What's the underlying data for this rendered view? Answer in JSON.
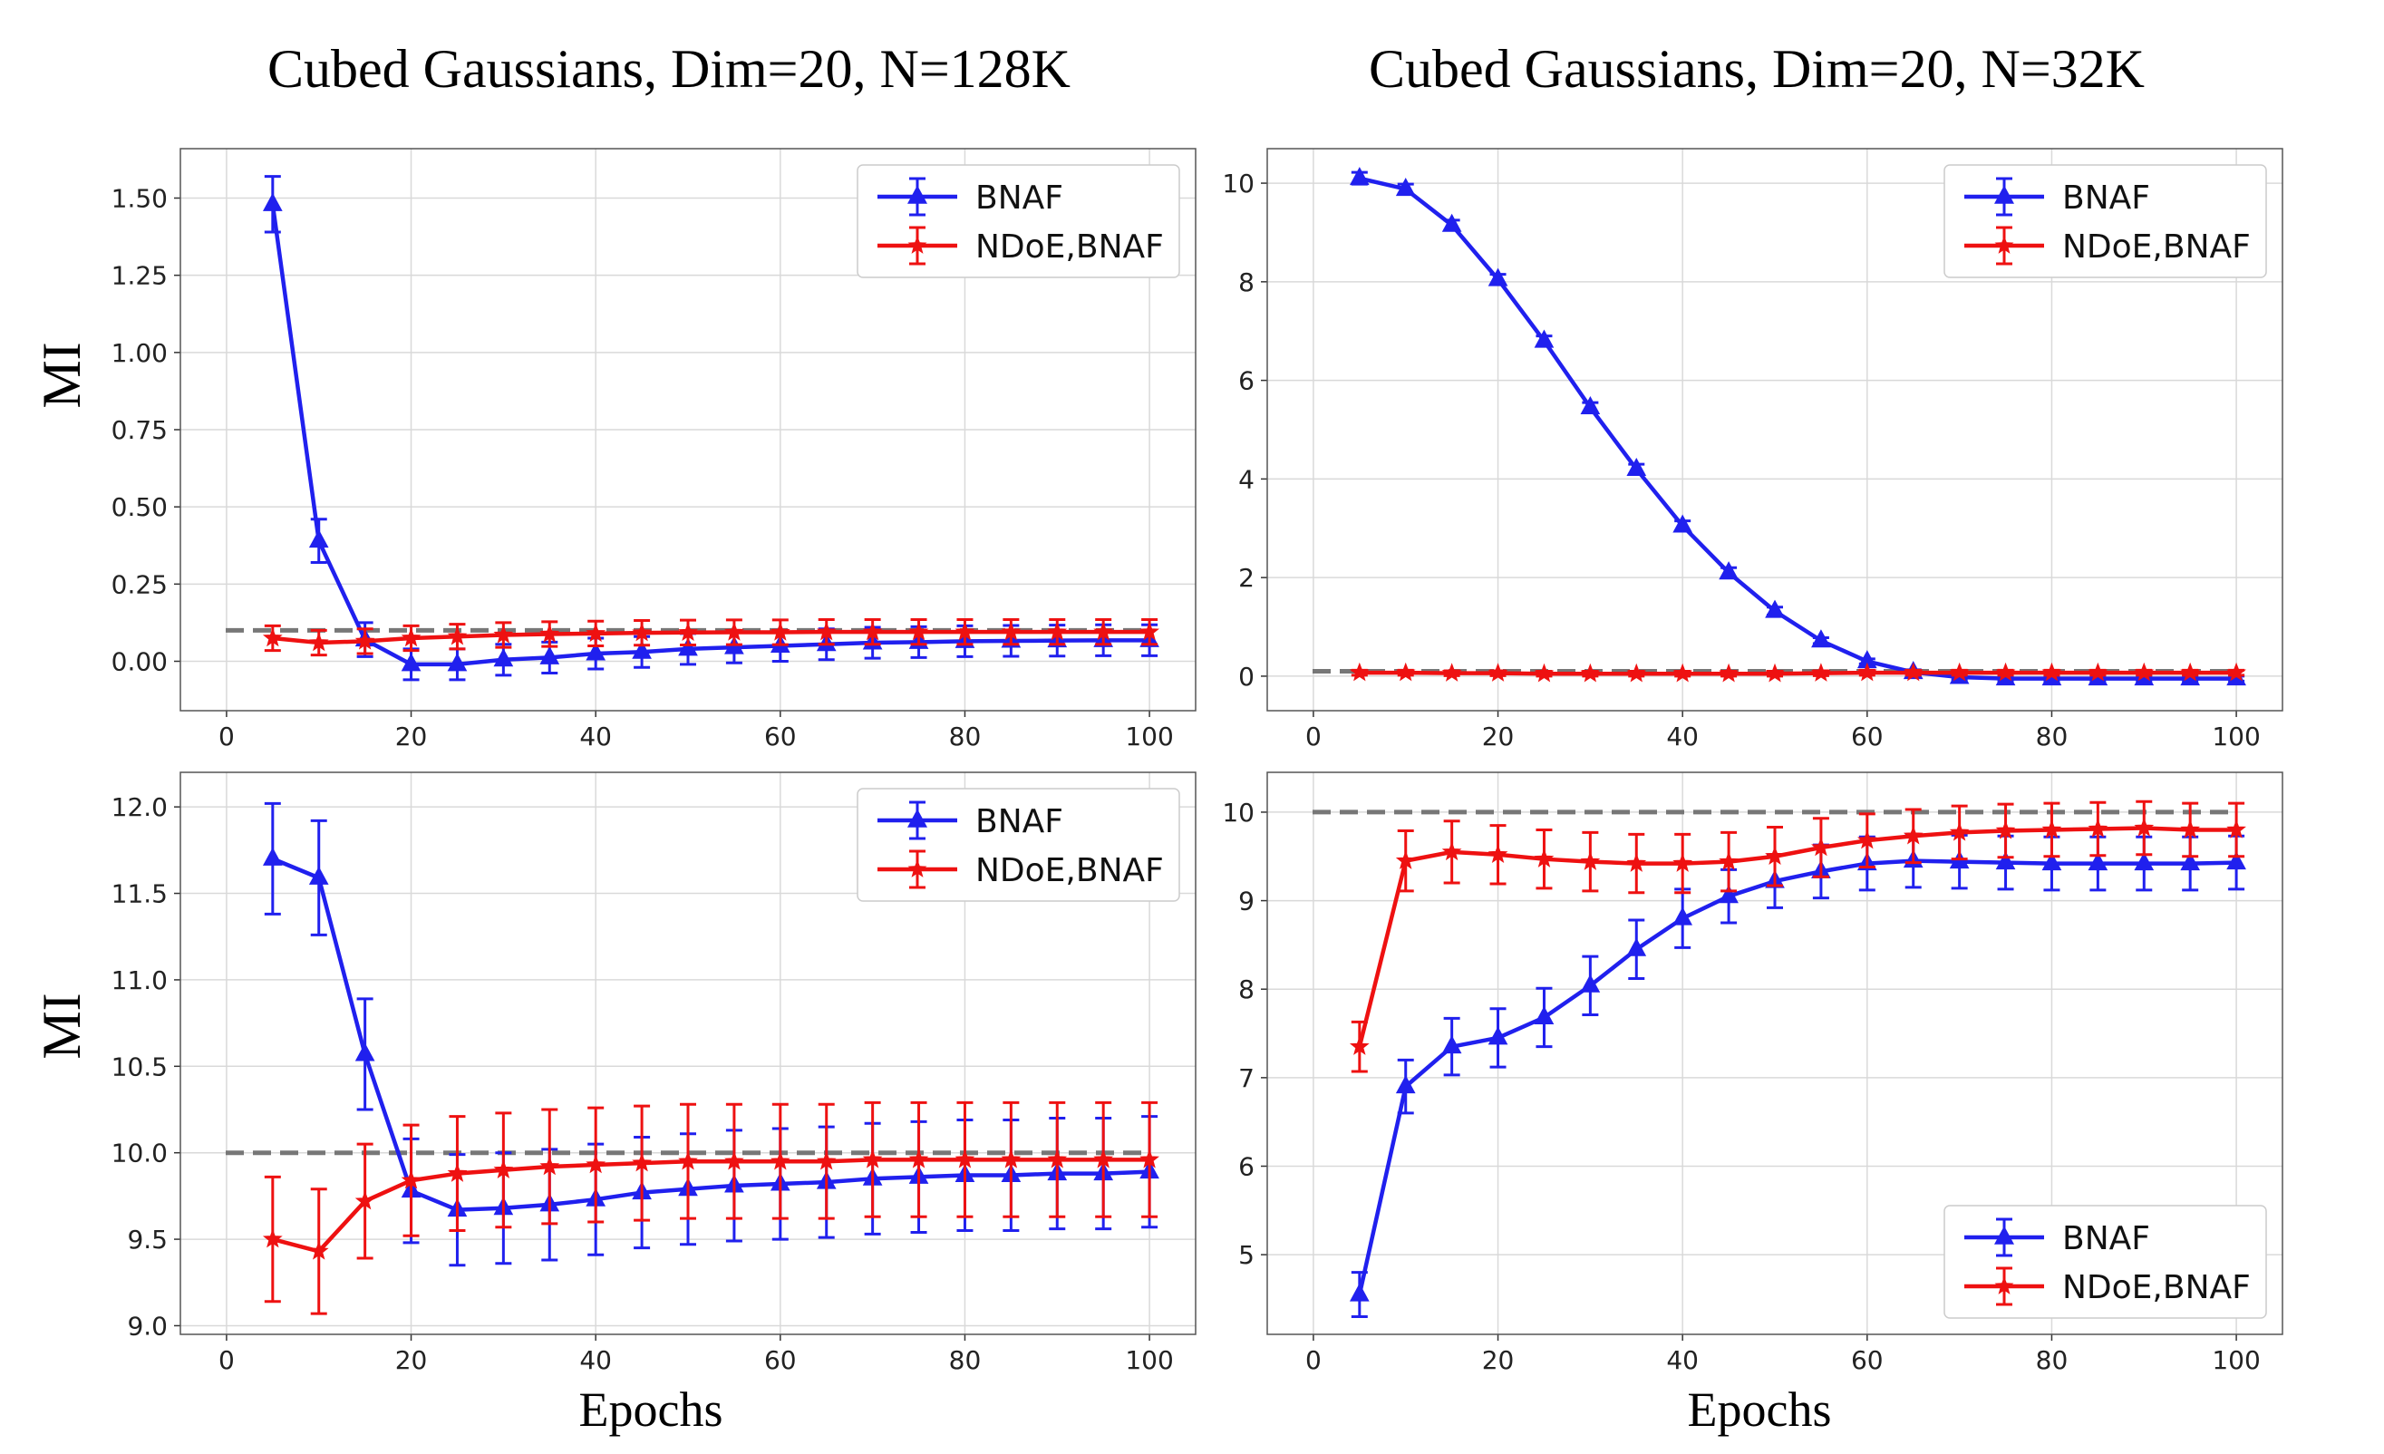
{
  "figure": {
    "col_titles": [
      "Cubed Gaussians, Dim=20, N=128K",
      "Cubed Gaussians, Dim=20, N=32K"
    ],
    "row_ylabels": [
      "MI",
      "MI"
    ],
    "col_xlabels": [
      "Epochs",
      "Epochs"
    ],
    "colors": {
      "BNAF": "#2020ee",
      "NDoE,BNAF": "#ee1111",
      "true_mi": "#777777",
      "grid": "#d9d9d9"
    }
  },
  "chart_data": [
    {
      "type": "line",
      "title": "Cubed Gaussians, Dim=20, N=128K",
      "xlabel": "",
      "ylabel": "MI",
      "xlim": [
        -5,
        105
      ],
      "ylim": [
        -0.16,
        1.66
      ],
      "xticks": [
        0,
        20,
        40,
        60,
        80,
        100
      ],
      "yticks": [
        0.0,
        0.25,
        0.5,
        0.75,
        1.0,
        1.25,
        1.5
      ],
      "ytick_labels": [
        "0.00",
        "0.25",
        "0.50",
        "0.75",
        "1.00",
        "1.25",
        "1.50"
      ],
      "grid": true,
      "legend_position": "top-right",
      "reference_line": 0.1,
      "x": [
        5,
        10,
        15,
        20,
        25,
        30,
        35,
        40,
        45,
        50,
        55,
        60,
        65,
        70,
        75,
        80,
        85,
        90,
        95,
        100
      ],
      "series": [
        {
          "name": "BNAF",
          "marker": "triangle",
          "values": [
            1.48,
            0.39,
            0.07,
            -0.01,
            -0.01,
            0.005,
            0.012,
            0.025,
            0.03,
            0.04,
            0.045,
            0.05,
            0.055,
            0.06,
            0.062,
            0.065,
            0.066,
            0.067,
            0.068,
            0.068
          ],
          "errors": [
            0.09,
            0.07,
            0.055,
            0.05,
            0.05,
            0.05,
            0.05,
            0.05,
            0.05,
            0.05,
            0.05,
            0.05,
            0.05,
            0.05,
            0.05,
            0.05,
            0.05,
            0.05,
            0.05,
            0.05
          ]
        },
        {
          "name": "NDoE,BNAF",
          "marker": "star",
          "values": [
            0.075,
            0.06,
            0.065,
            0.075,
            0.08,
            0.085,
            0.088,
            0.09,
            0.092,
            0.093,
            0.094,
            0.094,
            0.095,
            0.095,
            0.095,
            0.095,
            0.095,
            0.095,
            0.095,
            0.095
          ],
          "errors": [
            0.04,
            0.04,
            0.04,
            0.04,
            0.04,
            0.04,
            0.04,
            0.04,
            0.04,
            0.04,
            0.04,
            0.04,
            0.04,
            0.04,
            0.04,
            0.04,
            0.04,
            0.04,
            0.04,
            0.04
          ]
        }
      ]
    },
    {
      "type": "line",
      "title": "Cubed Gaussians, Dim=20, N=32K",
      "xlabel": "",
      "ylabel": "",
      "xlim": [
        -5,
        105
      ],
      "ylim": [
        -0.7,
        10.7
      ],
      "xticks": [
        0,
        20,
        40,
        60,
        80,
        100
      ],
      "yticks": [
        0,
        2,
        4,
        6,
        8,
        10
      ],
      "ytick_labels": [
        "0",
        "2",
        "4",
        "6",
        "8",
        "10"
      ],
      "grid": true,
      "legend_position": "top-right",
      "reference_line": 0.1,
      "x": [
        5,
        10,
        15,
        20,
        25,
        30,
        35,
        40,
        45,
        50,
        55,
        60,
        65,
        70,
        75,
        80,
        85,
        90,
        95,
        100
      ],
      "series": [
        {
          "name": "BNAF",
          "marker": "triangle",
          "values": [
            10.1,
            9.88,
            9.15,
            8.05,
            6.8,
            5.45,
            4.2,
            3.05,
            2.1,
            1.32,
            0.72,
            0.3,
            0.08,
            -0.02,
            -0.05,
            -0.05,
            -0.05,
            -0.05,
            -0.05,
            -0.05
          ],
          "errors": [
            0.12,
            0.1,
            0.1,
            0.1,
            0.1,
            0.1,
            0.1,
            0.1,
            0.1,
            0.08,
            0.06,
            0.05,
            0.05,
            0.05,
            0.05,
            0.05,
            0.05,
            0.05,
            0.05,
            0.05
          ]
        },
        {
          "name": "NDoE,BNAF",
          "marker": "star",
          "values": [
            0.07,
            0.07,
            0.06,
            0.06,
            0.05,
            0.05,
            0.05,
            0.05,
            0.05,
            0.05,
            0.06,
            0.07,
            0.07,
            0.07,
            0.07,
            0.07,
            0.07,
            0.07,
            0.07,
            0.07
          ],
          "errors": [
            0.05,
            0.05,
            0.05,
            0.05,
            0.05,
            0.05,
            0.05,
            0.05,
            0.05,
            0.05,
            0.05,
            0.05,
            0.05,
            0.05,
            0.05,
            0.05,
            0.05,
            0.05,
            0.05,
            0.05
          ]
        }
      ]
    },
    {
      "type": "line",
      "title": "",
      "xlabel": "Epochs",
      "ylabel": "MI",
      "xlim": [
        -5,
        105
      ],
      "ylim": [
        8.95,
        12.2
      ],
      "xticks": [
        0,
        20,
        40,
        60,
        80,
        100
      ],
      "yticks": [
        9.0,
        9.5,
        10.0,
        10.5,
        11.0,
        11.5,
        12.0
      ],
      "ytick_labels": [
        "9.0",
        "9.5",
        "10.0",
        "10.5",
        "11.0",
        "11.5",
        "12.0"
      ],
      "grid": true,
      "legend_position": "top-right",
      "reference_line": 10.0,
      "x": [
        5,
        10,
        15,
        20,
        25,
        30,
        35,
        40,
        45,
        50,
        55,
        60,
        65,
        70,
        75,
        80,
        85,
        90,
        95,
        100
      ],
      "series": [
        {
          "name": "BNAF",
          "marker": "triangle",
          "values": [
            11.7,
            11.59,
            10.57,
            9.78,
            9.67,
            9.68,
            9.7,
            9.73,
            9.77,
            9.79,
            9.81,
            9.82,
            9.83,
            9.85,
            9.86,
            9.87,
            9.87,
            9.88,
            9.88,
            9.89
          ],
          "errors": [
            0.32,
            0.33,
            0.32,
            0.3,
            0.32,
            0.32,
            0.32,
            0.32,
            0.32,
            0.32,
            0.32,
            0.32,
            0.32,
            0.32,
            0.32,
            0.32,
            0.32,
            0.32,
            0.32,
            0.32
          ]
        },
        {
          "name": "NDoE,BNAF",
          "marker": "star",
          "values": [
            9.5,
            9.43,
            9.72,
            9.84,
            9.88,
            9.9,
            9.92,
            9.93,
            9.94,
            9.95,
            9.95,
            9.95,
            9.95,
            9.96,
            9.96,
            9.96,
            9.96,
            9.96,
            9.96,
            9.96
          ],
          "errors": [
            0.36,
            0.36,
            0.33,
            0.32,
            0.33,
            0.33,
            0.33,
            0.33,
            0.33,
            0.33,
            0.33,
            0.33,
            0.33,
            0.33,
            0.33,
            0.33,
            0.33,
            0.33,
            0.33,
            0.33
          ]
        }
      ]
    },
    {
      "type": "line",
      "title": "",
      "xlabel": "Epochs",
      "ylabel": "",
      "xlim": [
        -5,
        105
      ],
      "ylim": [
        4.1,
        10.45
      ],
      "xticks": [
        0,
        20,
        40,
        60,
        80,
        100
      ],
      "yticks": [
        5,
        6,
        7,
        8,
        9,
        10
      ],
      "ytick_labels": [
        "5",
        "6",
        "7",
        "8",
        "9",
        "10"
      ],
      "grid": true,
      "legend_position": "bottom-right",
      "reference_line": 10.0,
      "x": [
        5,
        10,
        15,
        20,
        25,
        30,
        35,
        40,
        45,
        50,
        55,
        60,
        65,
        70,
        75,
        80,
        85,
        90,
        95,
        100
      ],
      "series": [
        {
          "name": "BNAF",
          "marker": "triangle",
          "values": [
            4.55,
            6.9,
            7.35,
            7.45,
            7.68,
            8.04,
            8.45,
            8.8,
            9.05,
            9.22,
            9.33,
            9.42,
            9.45,
            9.44,
            9.43,
            9.42,
            9.42,
            9.42,
            9.42,
            9.43
          ],
          "errors": [
            0.25,
            0.3,
            0.32,
            0.33,
            0.33,
            0.33,
            0.33,
            0.33,
            0.3,
            0.3,
            0.3,
            0.3,
            0.3,
            0.3,
            0.3,
            0.3,
            0.3,
            0.3,
            0.3,
            0.3
          ]
        },
        {
          "name": "NDoE,BNAF",
          "marker": "star",
          "values": [
            7.35,
            9.45,
            9.55,
            9.52,
            9.47,
            9.44,
            9.42,
            9.42,
            9.44,
            9.5,
            9.6,
            9.68,
            9.73,
            9.77,
            9.79,
            9.8,
            9.81,
            9.82,
            9.8,
            9.8
          ],
          "errors": [
            0.28,
            0.34,
            0.35,
            0.33,
            0.33,
            0.33,
            0.33,
            0.33,
            0.33,
            0.33,
            0.33,
            0.3,
            0.3,
            0.3,
            0.3,
            0.3,
            0.3,
            0.3,
            0.3,
            0.3
          ]
        }
      ]
    }
  ]
}
